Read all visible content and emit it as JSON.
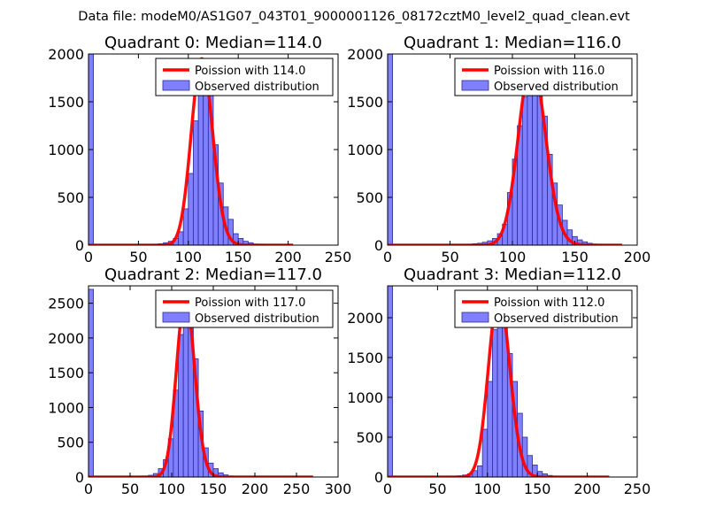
{
  "suptitle": "Data file: modeM0/AS1G07_043T01_9000001126_08172cztM0_level2_quad_clean.evt",
  "colors": {
    "bar_fill": "#8080ff",
    "bar_edge": "#2a2a99",
    "fit_line": "#ff0000"
  },
  "chart_data": [
    {
      "type": "bar",
      "title": "Quadrant 0: Median=114.0",
      "xlim": [
        0,
        250
      ],
      "ylim": [
        0,
        2000
      ],
      "xticks": [
        0,
        50,
        100,
        150,
        200,
        250
      ],
      "yticks": [
        0,
        500,
        1000,
        1500,
        2000
      ],
      "bin_width": 5,
      "legend": {
        "location": "upper right",
        "fit_label": "Poission with 114.0",
        "hist_label": "Observed distribution"
      },
      "bins": [
        [
          0,
          2050
        ],
        [
          65,
          10
        ],
        [
          70,
          15
        ],
        [
          75,
          25
        ],
        [
          80,
          40
        ],
        [
          85,
          70
        ],
        [
          90,
          140
        ],
        [
          95,
          380
        ],
        [
          100,
          750
        ],
        [
          105,
          1300
        ],
        [
          110,
          1800
        ],
        [
          115,
          1920
        ],
        [
          120,
          1650
        ],
        [
          125,
          1050
        ],
        [
          130,
          650
        ],
        [
          135,
          400
        ],
        [
          140,
          270
        ],
        [
          145,
          120
        ],
        [
          150,
          70
        ],
        [
          155,
          40
        ],
        [
          160,
          25
        ],
        [
          165,
          12
        ],
        [
          170,
          8
        ]
      ],
      "fit": {
        "mean": 114.0,
        "x_range": [
          0,
          205
        ],
        "peak": 1950
      }
    },
    {
      "type": "bar",
      "title": "Quadrant 1: Median=116.0",
      "xlim": [
        0,
        200
      ],
      "ylim": [
        0,
        2000
      ],
      "xticks": [
        0,
        50,
        100,
        150,
        200
      ],
      "yticks": [
        0,
        500,
        1000,
        1500,
        2000
      ],
      "bin_width": 4,
      "legend": {
        "location": "upper right",
        "fit_label": "Poission with 116.0",
        "hist_label": "Observed distribution"
      },
      "bins": [
        [
          0,
          2000
        ],
        [
          64,
          10
        ],
        [
          68,
          15
        ],
        [
          72,
          20
        ],
        [
          76,
          30
        ],
        [
          80,
          45
        ],
        [
          84,
          70
        ],
        [
          88,
          120
        ],
        [
          92,
          220
        ],
        [
          96,
          550
        ],
        [
          100,
          900
        ],
        [
          104,
          1250
        ],
        [
          108,
          1550
        ],
        [
          112,
          1800
        ],
        [
          116,
          1850
        ],
        [
          120,
          1650
        ],
        [
          124,
          1350
        ],
        [
          128,
          950
        ],
        [
          132,
          650
        ],
        [
          136,
          420
        ],
        [
          140,
          260
        ],
        [
          144,
          160
        ],
        [
          148,
          90
        ],
        [
          152,
          55
        ],
        [
          156,
          35
        ],
        [
          160,
          20
        ],
        [
          164,
          12
        ],
        [
          168,
          8
        ]
      ],
      "fit": {
        "mean": 116.0,
        "x_range": [
          0,
          188
        ],
        "peak": 1920
      }
    },
    {
      "type": "bar",
      "title": "Quadrant 2: Median=117.0",
      "xlim": [
        0,
        300
      ],
      "ylim": [
        0,
        2750
      ],
      "xticks": [
        0,
        50,
        100,
        150,
        200,
        250,
        300
      ],
      "yticks": [
        0,
        500,
        1000,
        1500,
        2000,
        2500
      ],
      "bin_width": 6,
      "legend": {
        "location": "upper right",
        "fit_label": "Poission with 117.0",
        "hist_label": "Observed distribution"
      },
      "bins": [
        [
          0,
          2700
        ],
        [
          60,
          10
        ],
        [
          66,
          15
        ],
        [
          72,
          25
        ],
        [
          78,
          50
        ],
        [
          84,
          120
        ],
        [
          90,
          250
        ],
        [
          96,
          550
        ],
        [
          102,
          1250
        ],
        [
          108,
          2050
        ],
        [
          114,
          2400
        ],
        [
          120,
          2450
        ],
        [
          126,
          1700
        ],
        [
          132,
          950
        ],
        [
          138,
          420
        ],
        [
          144,
          200
        ],
        [
          150,
          120
        ],
        [
          156,
          60
        ],
        [
          162,
          30
        ],
        [
          168,
          15
        ]
      ],
      "fit": {
        "mean": 117.0,
        "x_range": [
          0,
          270
        ],
        "peak": 2600
      }
    },
    {
      "type": "bar",
      "title": "Quadrant 3: Median=112.0",
      "xlim": [
        0,
        250
      ],
      "ylim": [
        0,
        2400
      ],
      "xticks": [
        0,
        50,
        100,
        150,
        200,
        250
      ],
      "yticks": [
        0,
        500,
        1000,
        1500,
        2000
      ],
      "bin_width": 5,
      "legend": {
        "location": "upper right",
        "fit_label": "Poission with 112.0",
        "hist_label": "Observed distribution"
      },
      "bins": [
        [
          0,
          2400
        ],
        [
          65,
          10
        ],
        [
          70,
          15
        ],
        [
          75,
          25
        ],
        [
          80,
          40
        ],
        [
          85,
          80
        ],
        [
          90,
          140
        ],
        [
          95,
          600
        ],
        [
          100,
          1200
        ],
        [
          105,
          1850
        ],
        [
          110,
          2200
        ],
        [
          115,
          2000
        ],
        [
          120,
          1550
        ],
        [
          125,
          1200
        ],
        [
          130,
          800
        ],
        [
          135,
          500
        ],
        [
          140,
          270
        ],
        [
          145,
          150
        ],
        [
          150,
          70
        ],
        [
          155,
          40
        ],
        [
          160,
          20
        ],
        [
          165,
          10
        ]
      ],
      "fit": {
        "mean": 112.0,
        "x_range": [
          0,
          222
        ],
        "peak": 2300
      }
    }
  ]
}
